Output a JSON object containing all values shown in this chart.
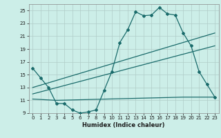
{
  "title": "",
  "xlabel": "Humidex (Indice chaleur)",
  "bg_color": "#cceee8",
  "grid_color": "#b0ccc8",
  "line_color": "#1a6b6b",
  "xlim": [
    -0.5,
    23.5
  ],
  "ylim": [
    9,
    26
  ],
  "yticks": [
    9,
    11,
    13,
    15,
    17,
    19,
    21,
    23,
    25
  ],
  "xticks": [
    0,
    1,
    2,
    3,
    4,
    5,
    6,
    7,
    8,
    9,
    10,
    11,
    12,
    13,
    14,
    15,
    16,
    17,
    18,
    19,
    20,
    21,
    22,
    23
  ],
  "main_curve_x": [
    0,
    1,
    2,
    3,
    4,
    5,
    6,
    7,
    8,
    9,
    10,
    11,
    12,
    13,
    14,
    15,
    16,
    17,
    18,
    19,
    20,
    21,
    22,
    23
  ],
  "main_curve_y": [
    16.0,
    14.5,
    13.0,
    10.5,
    10.5,
    9.5,
    9.0,
    9.2,
    9.5,
    12.5,
    15.5,
    20.0,
    22.0,
    24.8,
    24.2,
    24.3,
    25.5,
    24.5,
    24.3,
    21.5,
    19.5,
    15.5,
    13.5,
    11.5
  ],
  "trend1_x": [
    0,
    23
  ],
  "trend1_y": [
    13.0,
    21.5
  ],
  "trend2_x": [
    0,
    23
  ],
  "trend2_y": [
    12.0,
    19.5
  ],
  "bottom_line_x": [
    0,
    3,
    19,
    23
  ],
  "bottom_line_y": [
    11.2,
    11.0,
    11.5,
    11.5
  ]
}
